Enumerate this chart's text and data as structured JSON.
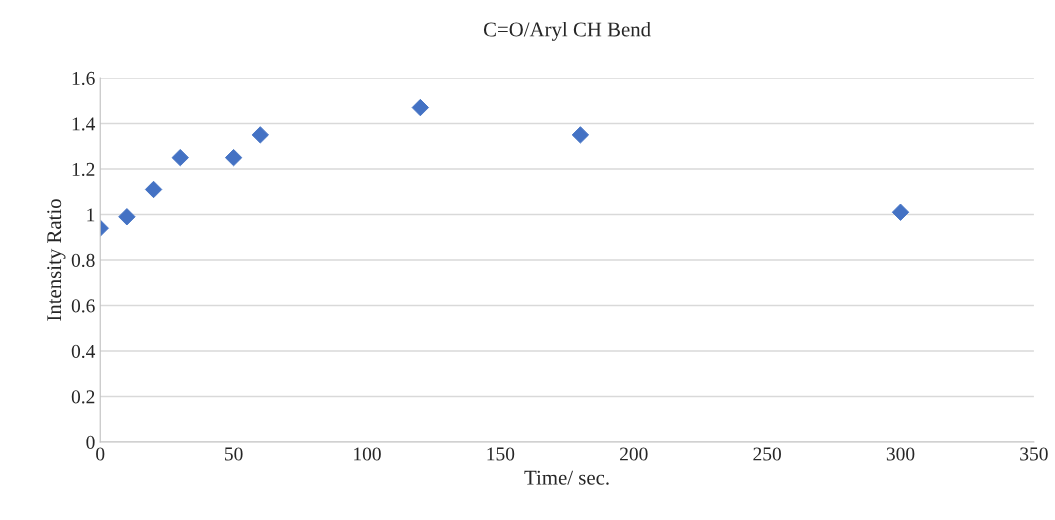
{
  "chart_data": {
    "type": "scatter",
    "title": "C=O/Aryl CH Bend",
    "xlabel": "Time/ sec.",
    "ylabel": "Intensity Ratio",
    "x": [
      0,
      10,
      20,
      30,
      50,
      60,
      120,
      180,
      300
    ],
    "series": [
      {
        "color": "#4472c4",
        "values": [
          0.94,
          0.99,
          1.11,
          1.25,
          1.25,
          1.35,
          1.47,
          1.35,
          1.01
        ]
      }
    ],
    "xlim": [
      0,
      350
    ],
    "xticks": [
      0,
      50,
      100,
      150,
      200,
      250,
      300,
      350
    ],
    "ylim": [
      0,
      1.6
    ],
    "yticks": [
      0,
      0.2,
      0.4,
      0.6,
      0.8,
      1,
      1.2,
      1.4,
      1.6
    ],
    "grid": "y",
    "marker": "diamond",
    "legend": false
  }
}
